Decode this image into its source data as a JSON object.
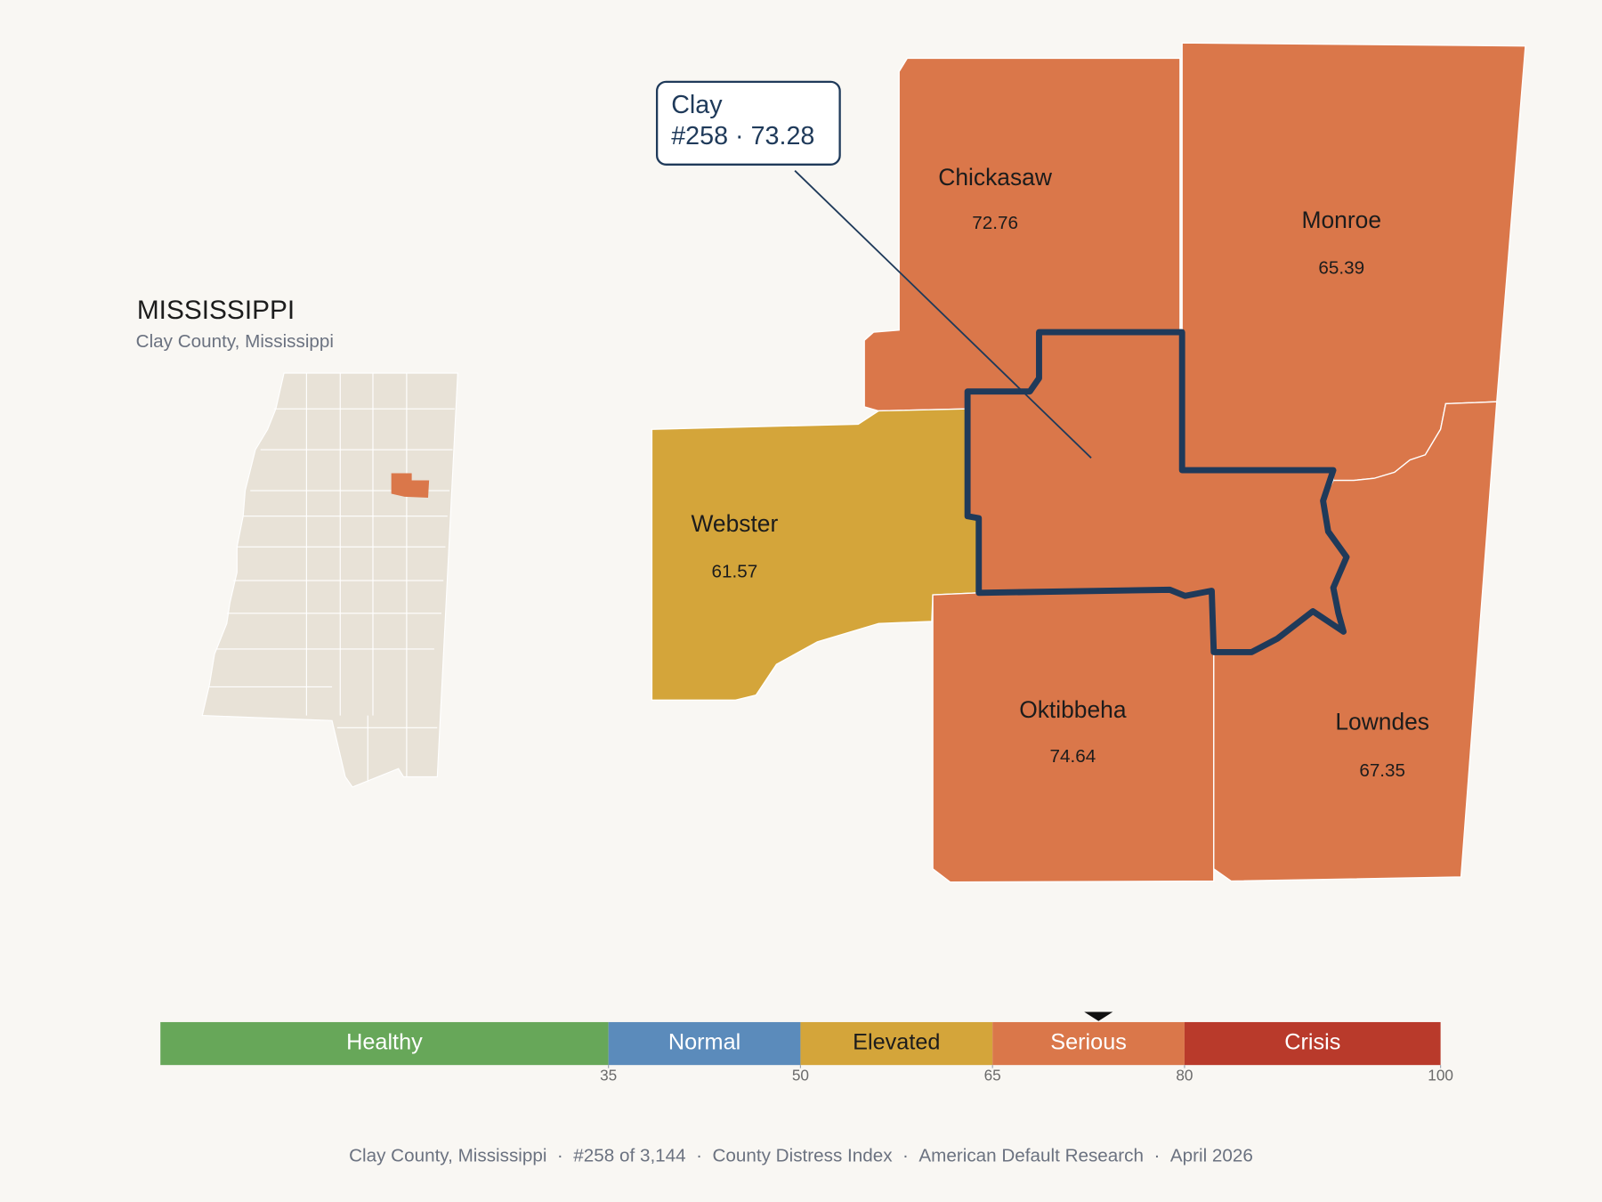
{
  "map": {
    "title": "MISSISSIPPI",
    "subtitle": "Clay County, Mississippi",
    "highlight": {
      "name": "Clay",
      "rank": "#258",
      "separator": "·",
      "score": 73.28
    },
    "counties": [
      {
        "name": "Chickasaw",
        "value": 72.76
      },
      {
        "name": "Monroe",
        "value": 65.39
      },
      {
        "name": "Webster",
        "value": 61.57
      },
      {
        "name": "Oktibbeha",
        "value": 74.64
      },
      {
        "name": "Lowndes",
        "value": 67.35
      }
    ],
    "scale": {
      "xlim": [
        0,
        100
      ],
      "xticks": [
        35,
        50,
        65,
        80,
        100
      ],
      "bands": [
        {
          "label": "Healthy",
          "from": 0,
          "to": 35,
          "color": "#67a759",
          "text_color": "#ffffff"
        },
        {
          "label": "Normal",
          "from": 35,
          "to": 50,
          "color": "#5b8bbb",
          "text_color": "#ffffff"
        },
        {
          "label": "Elevated",
          "from": 50,
          "to": 65,
          "color": "#d4a53a",
          "text_color": "#1c1c1c"
        },
        {
          "label": "Serious",
          "from": 65,
          "to": 80,
          "color": "#da774a",
          "text_color": "#ffffff"
        },
        {
          "label": "Crisis",
          "from": 80,
          "to": 100,
          "color": "#b93a2b",
          "text_color": "#ffffff"
        }
      ]
    },
    "footer": {
      "separator": "·",
      "items": [
        "Clay County, Mississippi",
        "#258 of 3,144",
        "County Distress Index",
        "American Default Research",
        "April 2026"
      ]
    }
  }
}
